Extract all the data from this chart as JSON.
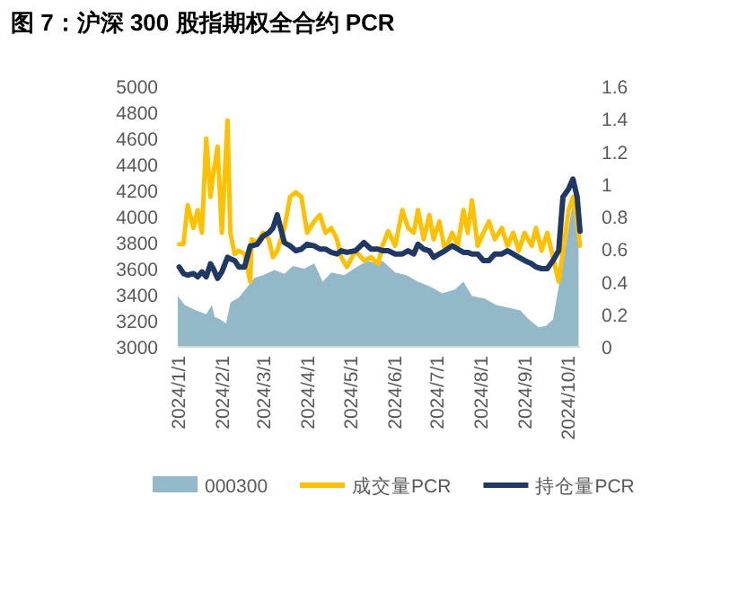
{
  "chart_data": {
    "type": "line",
    "title": "图 7：沪深 300 股指期权全合约 PCR",
    "x": [
      "2024-01-02",
      "2024-01-05",
      "2024-01-08",
      "2024-01-12",
      "2024-01-15",
      "2024-01-18",
      "2024-01-21",
      "2024-01-24",
      "2024-01-26",
      "2024-01-29",
      "2024-02-01",
      "2024-02-05",
      "2024-02-07",
      "2024-02-10",
      "2024-02-13",
      "2024-02-17",
      "2024-02-21",
      "2024-02-22",
      "2024-02-26",
      "2024-03-01",
      "2024-03-05",
      "2024-03-08",
      "2024-03-11",
      "2024-03-16",
      "2024-03-20",
      "2024-03-24",
      "2024-03-28",
      "2024-04-01",
      "2024-04-06",
      "2024-04-10",
      "2024-04-14",
      "2024-04-18",
      "2024-04-22",
      "2024-04-25",
      "2024-04-29",
      "2024-05-05",
      "2024-05-11",
      "2024-05-16",
      "2024-05-21",
      "2024-05-24",
      "2024-05-28",
      "2024-06-02",
      "2024-06-07",
      "2024-06-11",
      "2024-06-15",
      "2024-06-18",
      "2024-06-22",
      "2024-06-26",
      "2024-06-29",
      "2024-07-03",
      "2024-07-07",
      "2024-07-12",
      "2024-07-16",
      "2024-07-20",
      "2024-07-23",
      "2024-07-26",
      "2024-07-30",
      "2024-08-03",
      "2024-08-07",
      "2024-08-11",
      "2024-08-16",
      "2024-08-20",
      "2024-08-24",
      "2024-08-28",
      "2024-09-01",
      "2024-09-06",
      "2024-09-09",
      "2024-09-13",
      "2024-09-17",
      "2024-09-21",
      "2024-09-25",
      "2024-09-28",
      "2024-10-02",
      "2024-10-05",
      "2024-10-08",
      "2024-10-10"
    ],
    "series": [
      {
        "name": "000300",
        "type": "area",
        "axis": "y",
        "color": "#93b9c8",
        "x": [
          "2024-01-01",
          "2024-01-06",
          "2024-01-14",
          "2024-01-21",
          "2024-01-25",
          "2024-01-27",
          "2024-01-31",
          "2024-02-04",
          "2024-02-07",
          "2024-02-13",
          "2024-02-19",
          "2024-02-24",
          "2024-03-01",
          "2024-03-09",
          "2024-03-16",
          "2024-03-22",
          "2024-03-30",
          "2024-04-06",
          "2024-04-12",
          "2024-04-18",
          "2024-04-27",
          "2024-05-07",
          "2024-05-14",
          "2024-05-20",
          "2024-05-24",
          "2024-06-02",
          "2024-06-10",
          "2024-06-18",
          "2024-06-27",
          "2024-07-05",
          "2024-07-14",
          "2024-07-20",
          "2024-07-26",
          "2024-08-04",
          "2024-08-12",
          "2024-08-21",
          "2024-08-29",
          "2024-09-04",
          "2024-09-11",
          "2024-09-16",
          "2024-09-21",
          "2024-09-25",
          "2024-09-30",
          "2024-10-04",
          "2024-10-07",
          "2024-10-09"
        ],
        "values": [
          3390,
          3320,
          3280,
          3250,
          3320,
          3230,
          3210,
          3180,
          3340,
          3380,
          3460,
          3530,
          3550,
          3590,
          3560,
          3620,
          3600,
          3640,
          3500,
          3570,
          3550,
          3620,
          3660,
          3640,
          3660,
          3570,
          3550,
          3500,
          3460,
          3410,
          3440,
          3500,
          3390,
          3370,
          3320,
          3300,
          3280,
          3210,
          3150,
          3160,
          3210,
          3460,
          3780,
          4050,
          4120,
          3870
        ]
      },
      {
        "name": "成交量PCR",
        "axis": "y2",
        "color": "#ffc000",
        "values": [
          0.63,
          0.63,
          0.87,
          0.73,
          0.84,
          0.7,
          1.28,
          0.92,
          1.06,
          1.23,
          0.7,
          1.39,
          0.7,
          0.57,
          0.59,
          0.57,
          0.4,
          0.66,
          0.64,
          0.7,
          0.66,
          0.55,
          0.59,
          0.73,
          0.92,
          0.95,
          0.92,
          0.7,
          0.77,
          0.81,
          0.7,
          0.73,
          0.66,
          0.55,
          0.49,
          0.59,
          0.53,
          0.55,
          0.51,
          0.62,
          0.71,
          0.62,
          0.84,
          0.73,
          0.7,
          0.84,
          0.66,
          0.81,
          0.66,
          0.77,
          0.59,
          0.7,
          0.62,
          0.84,
          0.7,
          0.9,
          0.62,
          0.7,
          0.77,
          0.66,
          0.73,
          0.62,
          0.7,
          0.59,
          0.7,
          0.62,
          0.73,
          0.59,
          0.7,
          0.55,
          0.4,
          0.59,
          0.84,
          0.92,
          0.77,
          0.62
        ]
      },
      {
        "name": "持仓量PCR",
        "axis": "y2",
        "color": "#1f3864",
        "values": [
          0.49,
          0.45,
          0.44,
          0.45,
          0.43,
          0.46,
          0.43,
          0.51,
          0.48,
          0.42,
          0.46,
          0.55,
          0.54,
          0.53,
          0.49,
          0.49,
          0.62,
          0.62,
          0.63,
          0.68,
          0.7,
          0.73,
          0.81,
          0.64,
          0.62,
          0.59,
          0.6,
          0.63,
          0.62,
          0.6,
          0.6,
          0.58,
          0.57,
          0.59,
          0.58,
          0.59,
          0.64,
          0.6,
          0.6,
          0.59,
          0.59,
          0.57,
          0.57,
          0.59,
          0.57,
          0.63,
          0.6,
          0.59,
          0.55,
          0.57,
          0.59,
          0.62,
          0.6,
          0.58,
          0.58,
          0.57,
          0.57,
          0.53,
          0.53,
          0.57,
          0.57,
          0.59,
          0.57,
          0.55,
          0.53,
          0.51,
          0.49,
          0.48,
          0.48,
          0.53,
          0.59,
          0.92,
          0.97,
          1.03,
          0.92,
          0.71
        ]
      }
    ],
    "xlim": [
      "2024-01-01",
      "2024-10-10"
    ],
    "xticks": [
      {
        "value": "2024-01-01",
        "label": "2024/1/1"
      },
      {
        "value": "2024-02-01",
        "label": "2024/2/1"
      },
      {
        "value": "2024-03-01",
        "label": "2024/3/1"
      },
      {
        "value": "2024-04-01",
        "label": "2024/4/1"
      },
      {
        "value": "2024-05-01",
        "label": "2024/5/1"
      },
      {
        "value": "2024-06-01",
        "label": "2024/6/1"
      },
      {
        "value": "2024-07-01",
        "label": "2024/7/1"
      },
      {
        "value": "2024-08-01",
        "label": "2024/8/1"
      },
      {
        "value": "2024-09-01",
        "label": "2024/9/1"
      },
      {
        "value": "2024-10-01",
        "label": "2024/10/1"
      }
    ],
    "ylim": [
      3000,
      5000
    ],
    "yticks": [
      3000,
      3200,
      3400,
      3600,
      3800,
      4000,
      4200,
      4400,
      4600,
      4800,
      5000
    ],
    "y2lim": [
      0,
      1.6
    ],
    "y2ticks": [
      0,
      0.2,
      0.4,
      0.6,
      0.8,
      1,
      1.2,
      1.4,
      1.6
    ],
    "legend": "bottom",
    "grid": false
  }
}
